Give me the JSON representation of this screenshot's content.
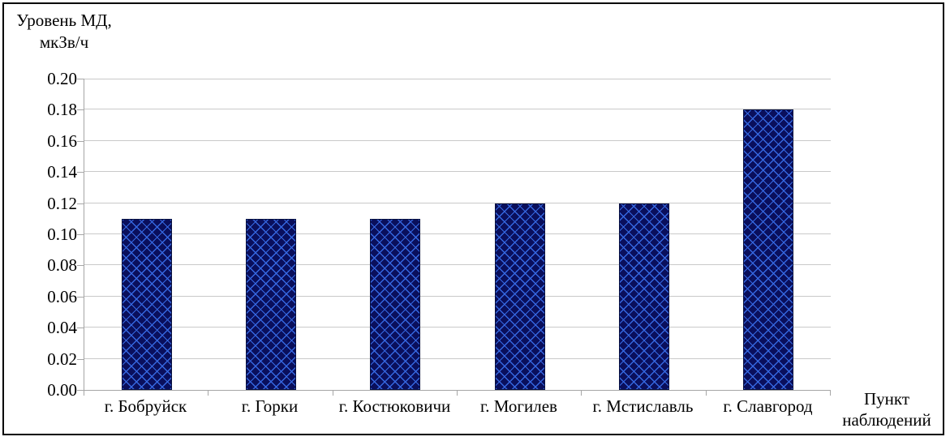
{
  "chart_data": {
    "type": "bar",
    "title": "",
    "ylabel_lines": [
      "Уровень МД,",
      "мкЗв/ч"
    ],
    "xlabel_lines": [
      "Пункт",
      "наблюдений"
    ],
    "categories": [
      "г. Бобруйск",
      "г. Горки",
      "г. Костюковичи",
      "г. Могилев",
      "г. Мстиславль",
      "г. Славгород"
    ],
    "values": [
      0.11,
      0.11,
      0.11,
      0.12,
      0.12,
      0.18
    ],
    "ylim": [
      0,
      0.2
    ],
    "ytick_step": 0.02,
    "ytick_labels": [
      "0.00",
      "0.02",
      "0.04",
      "0.06",
      "0.08",
      "0.10",
      "0.12",
      "0.14",
      "0.16",
      "0.18",
      "0.20"
    ],
    "grid": "horizontal",
    "legend": "none",
    "colors": {
      "bar_fill": "#0a0f5c",
      "bar_hatch": "#3567e0",
      "bar_border": "#071040",
      "gridline": "#c9c9c9",
      "axis": "#a6a6a6",
      "frame_border": "#000000",
      "text": "#000000"
    }
  }
}
